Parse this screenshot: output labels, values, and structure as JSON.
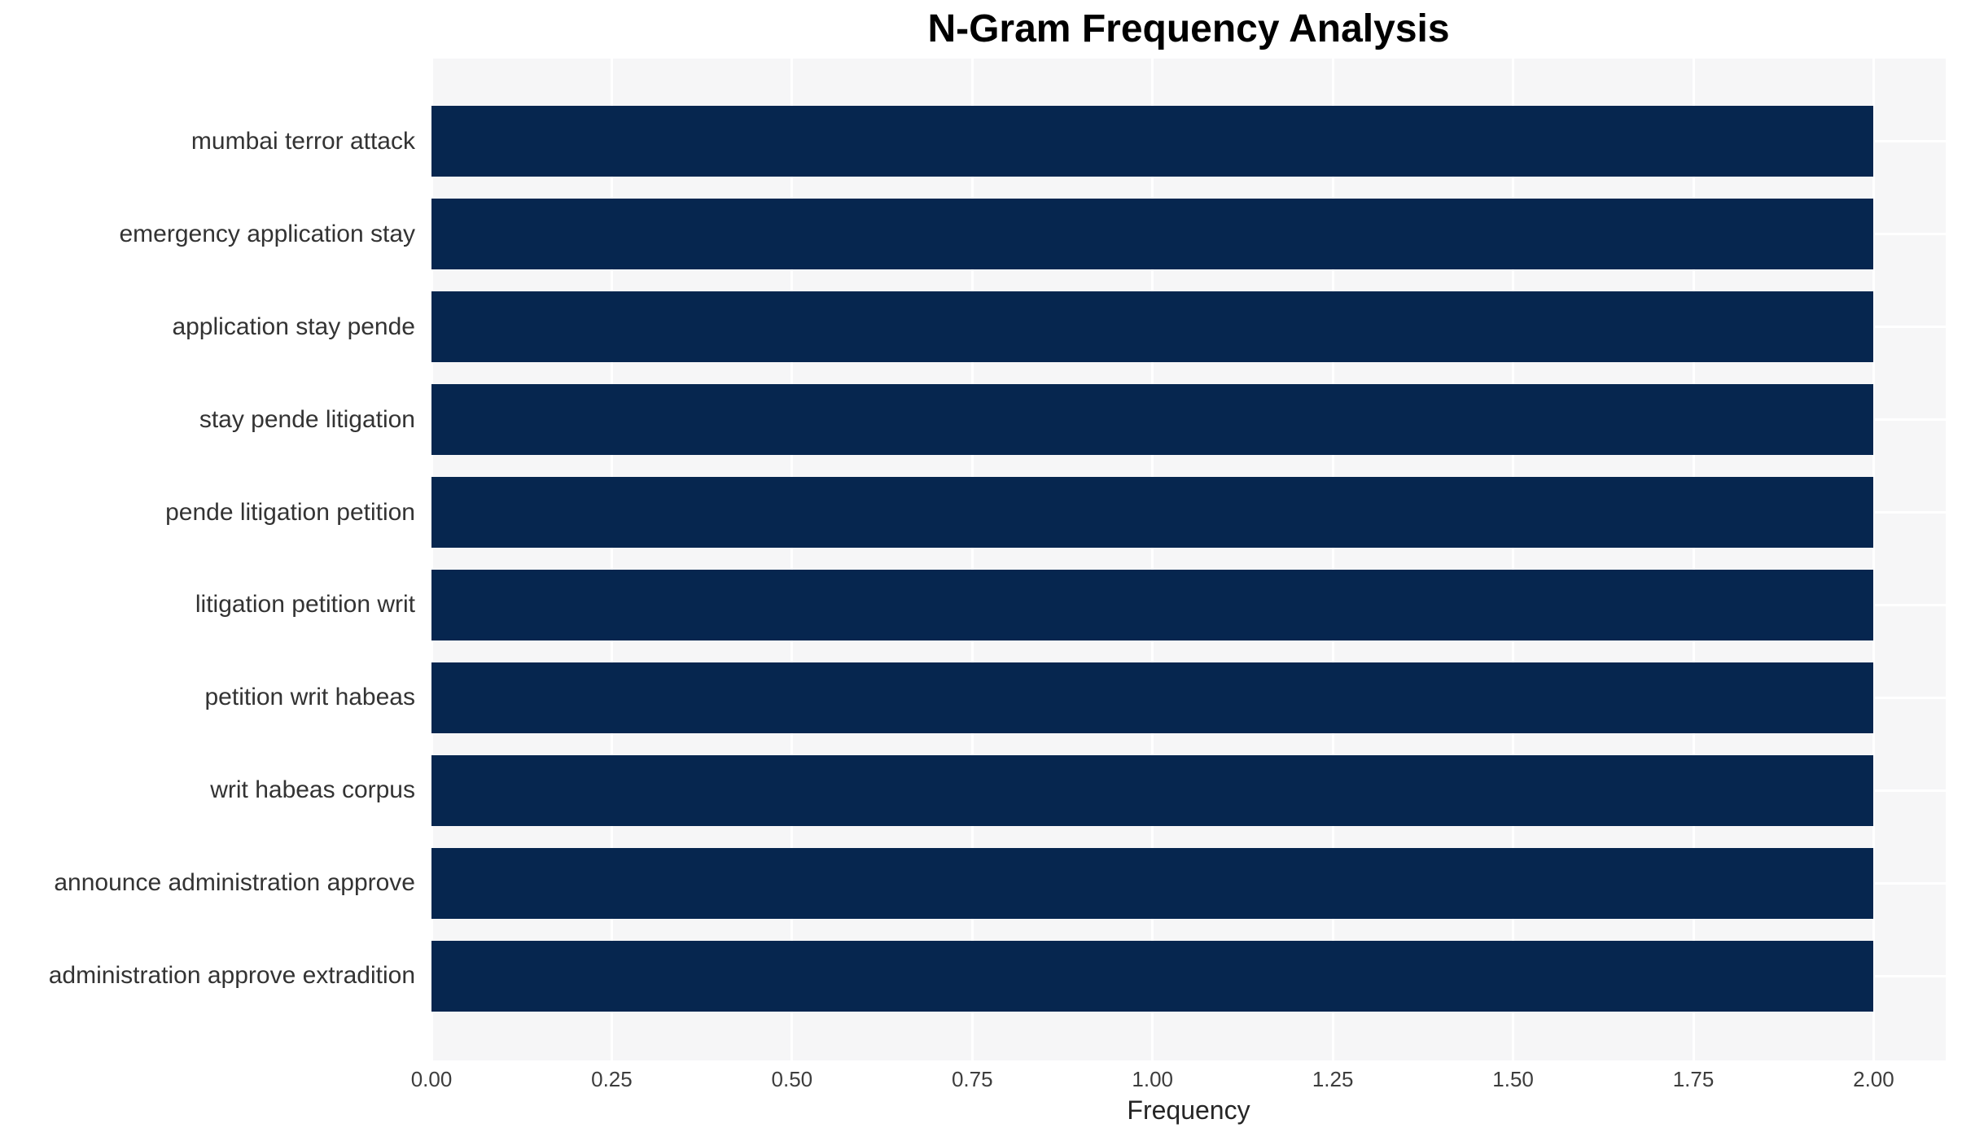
{
  "chart_data": {
    "type": "bar",
    "orientation": "horizontal",
    "title": "N-Gram Frequency Analysis",
    "xlabel": "Frequency",
    "categories": [
      "mumbai terror attack",
      "emergency application stay",
      "application stay pende",
      "stay pende litigation",
      "pende litigation petition",
      "litigation petition writ",
      "petition writ habeas",
      "writ habeas corpus",
      "announce administration approve",
      "administration approve extradition"
    ],
    "values": [
      2,
      2,
      2,
      2,
      2,
      2,
      2,
      2,
      2,
      2
    ],
    "xlim": [
      0,
      2.1
    ],
    "xticks": [
      "0.00",
      "0.25",
      "0.50",
      "0.75",
      "1.00",
      "1.25",
      "1.50",
      "1.75",
      "2.00"
    ],
    "grid": "both",
    "legend_position": "none",
    "colors": {
      "bar": "#06264f",
      "plot_background": "#f6f6f7",
      "gridline": "#ffffff",
      "title_text": "#000000",
      "tick_text": "#3d3d3d",
      "label_text": "#333333"
    }
  }
}
